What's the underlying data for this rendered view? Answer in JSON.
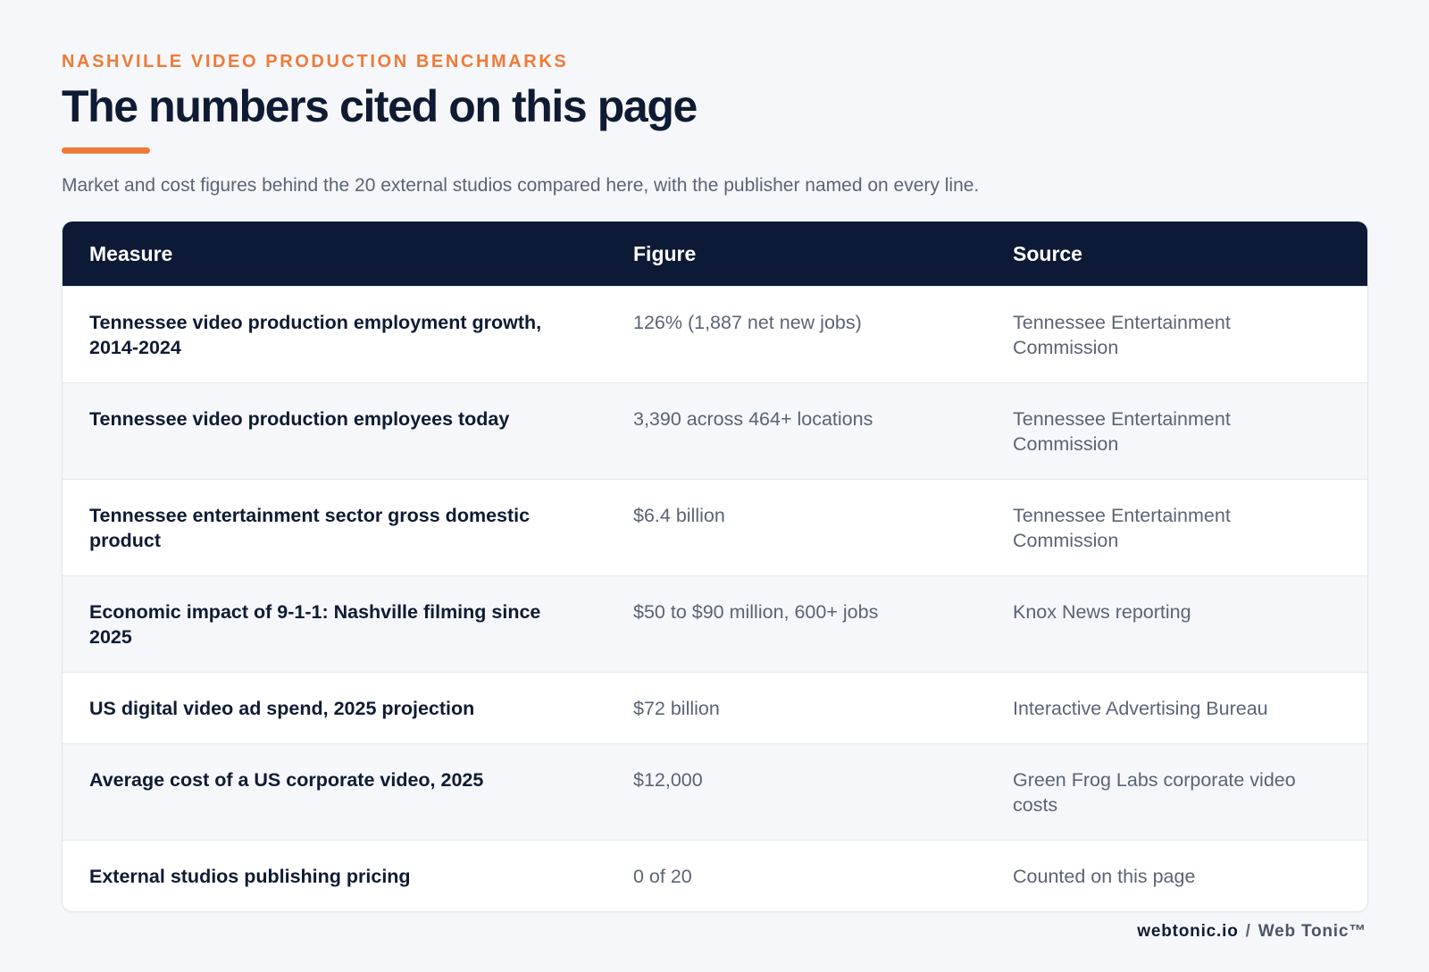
{
  "header": {
    "eyebrow": "NASHVILLE VIDEO PRODUCTION BENCHMARKS",
    "title": "The numbers cited on this page",
    "subtitle": "Market and cost figures behind the 20 external studios compared here, with the publisher named on every line."
  },
  "table": {
    "columns": [
      "Measure",
      "Figure",
      "Source"
    ],
    "rows": [
      {
        "measure": "Tennessee video production employment growth, 2014-2024",
        "figure": "126% (1,887 net new jobs)",
        "source": "Tennessee Entertainment Commission"
      },
      {
        "measure": "Tennessee video production employees today",
        "figure": "3,390 across 464+ locations",
        "source": "Tennessee Entertainment Commission"
      },
      {
        "measure": "Tennessee entertainment sector gross domestic product",
        "figure": "$6.4 billion",
        "source": "Tennessee Entertainment Commission"
      },
      {
        "measure": "Economic impact of 9-1-1: Nashville filming since 2025",
        "figure": "$50 to $90 million, 600+ jobs",
        "source": "Knox News reporting"
      },
      {
        "measure": "US digital video ad spend, 2025 projection",
        "figure": "$72 billion",
        "source": "Interactive Advertising Bureau"
      },
      {
        "measure": "Average cost of a US corporate video, 2025",
        "figure": "$12,000",
        "source": "Green Frog Labs corporate video costs"
      },
      {
        "measure": "External studios publishing pricing",
        "figure": "0 of 20",
        "source": "Counted on this page"
      }
    ]
  },
  "footer": {
    "domain": "webtonic.io",
    "separator": "/",
    "brand": "Web Tonic™"
  },
  "colors": {
    "accent": "#f07a35",
    "header_bg": "#0c1a35",
    "page_bg": "#f5f7fa"
  }
}
